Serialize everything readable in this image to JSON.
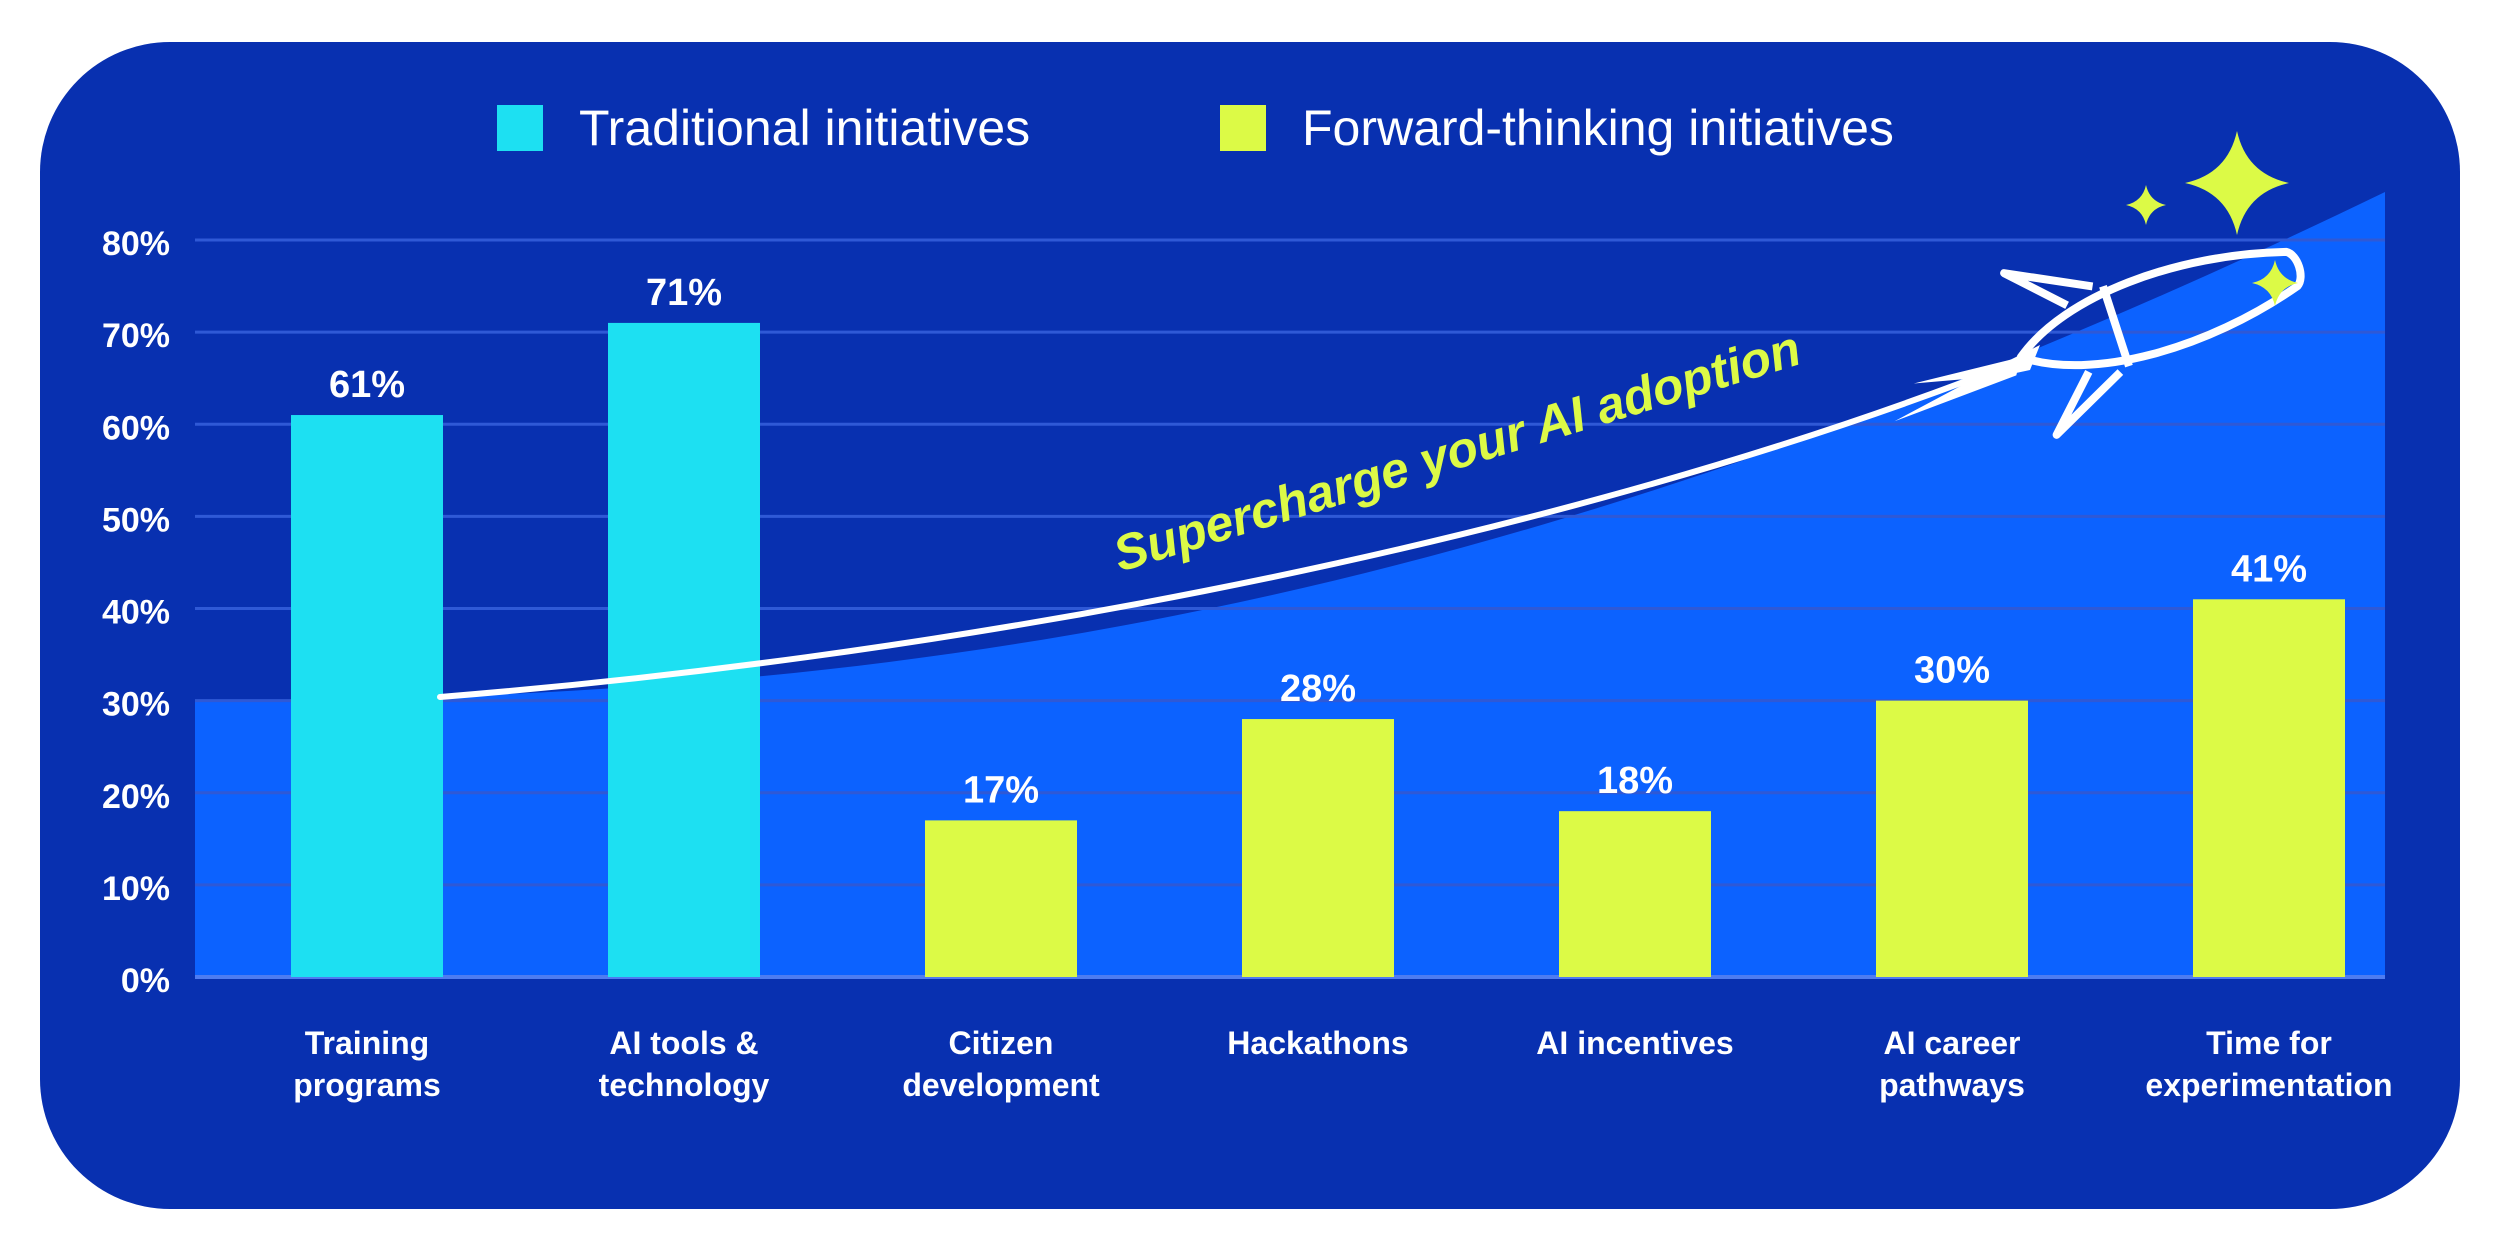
{
  "colors": {
    "panel": "#0830b0",
    "area": "#0c62ff",
    "grid": "#2f59d6",
    "traditional": "#1de0f2",
    "forward": "#dcfa46",
    "text": "#ffffff"
  },
  "legend": {
    "traditional_label": "Traditional initiatives",
    "forward_label": "Forward-thinking initiatives"
  },
  "annotation": {
    "text": "Supercharge your AI adoption",
    "icon": "rocket-icon",
    "decorations": [
      "sparkle-icon",
      "sparkle-icon",
      "sparkle-icon"
    ]
  },
  "chart_data": {
    "type": "bar",
    "ylim": [
      0,
      80
    ],
    "yticks": [
      0,
      10,
      20,
      30,
      40,
      50,
      60,
      70,
      80
    ],
    "ytick_labels": [
      "0%",
      "10%",
      "20%",
      "30%",
      "40%",
      "50%",
      "60%",
      "70%",
      "80%"
    ],
    "grid": true,
    "legend_position": "top-center",
    "categories": [
      [
        "Training",
        "programs"
      ],
      [
        "AI tools &",
        "technology"
      ],
      [
        "Citizen",
        "development"
      ],
      [
        "Hackathons"
      ],
      [
        "AI incentives"
      ],
      [
        "AI career",
        "pathways"
      ],
      [
        "Time for",
        "experimentation"
      ]
    ],
    "values": [
      61,
      71,
      17,
      28,
      18,
      30,
      41
    ],
    "value_labels": [
      "61%",
      "71%",
      "17%",
      "28%",
      "18%",
      "30%",
      "41%"
    ],
    "groups": [
      "Traditional initiatives",
      "Traditional initiatives",
      "Forward-thinking initiatives",
      "Forward-thinking initiatives",
      "Forward-thinking initiatives",
      "Forward-thinking initiatives",
      "Forward-thinking initiatives"
    ]
  }
}
